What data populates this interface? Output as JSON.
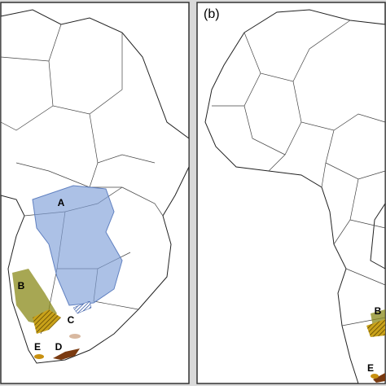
{
  "panels": [
    {
      "regions": [
        "A",
        "B",
        "C",
        "D",
        "E"
      ]
    },
    {
      "label": "(b)",
      "regions": [
        "B",
        "E"
      ]
    }
  ]
}
